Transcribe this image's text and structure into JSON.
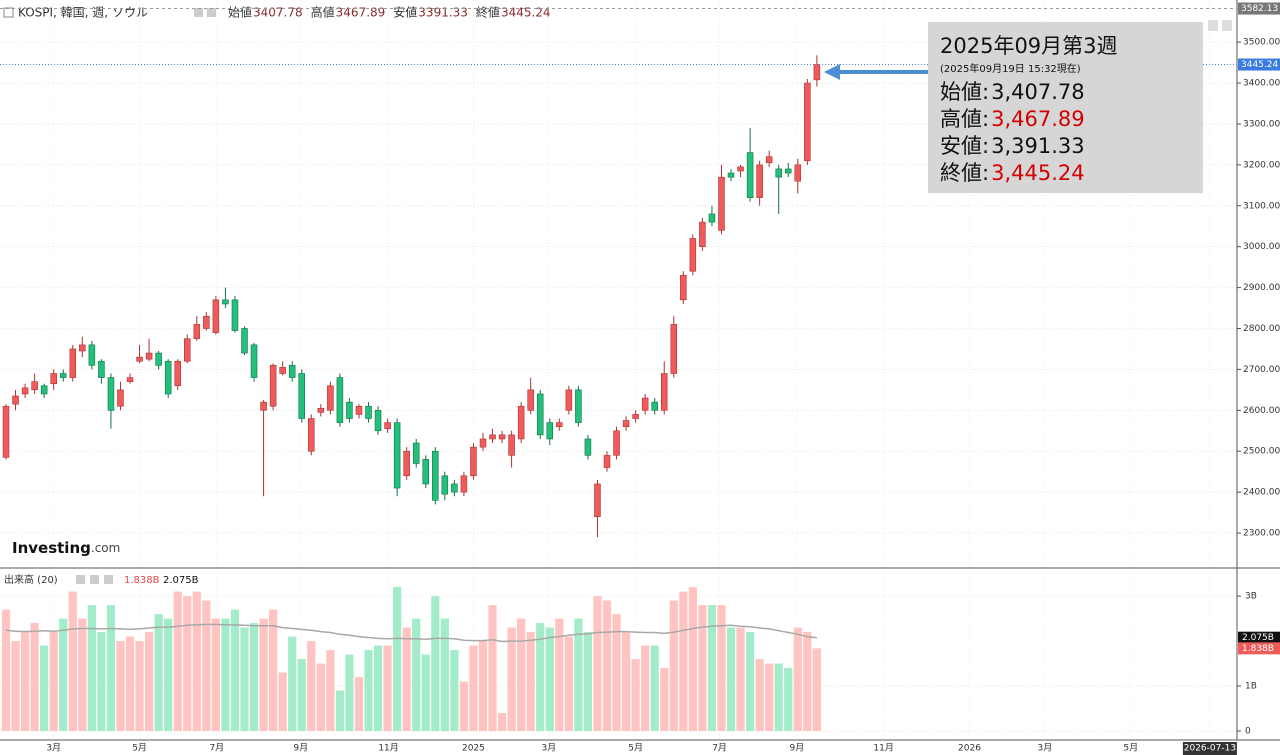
{
  "chart_data": {
    "type": "candlestick",
    "header": {
      "symbol": "KOSPI, 韓国, 週, ソウル",
      "labels": [
        "始値",
        "高値",
        "安値",
        "終値"
      ]
    },
    "info": {
      "title": "2025年09月第3週",
      "subtitle": "(2025年09月19日 15:32現在)",
      "rows": [
        {
          "label": "始値:",
          "value": "3,407.78",
          "color": "#111111"
        },
        {
          "label": "高値:",
          "value": "3,467.89",
          "color": "#d40000"
        },
        {
          "label": "安値:",
          "value": "3,391.33",
          "color": "#111111"
        },
        {
          "label": "終値:",
          "value": "3,445.24",
          "color": "#d40000"
        }
      ]
    },
    "logo": "Investing",
    "logo_suffix": ".com",
    "up_color": "#ef5b5b",
    "down_color": "#22c07a",
    "up_volume_color": "#ffc4c2",
    "down_volume_color": "#a3ecca",
    "ma_color": "#a8a8a8",
    "open": [
      2485,
      2615,
      2640,
      2650,
      2660,
      2665,
      2690,
      2680,
      2745,
      2760,
      2720,
      2680,
      2610,
      2670,
      2720,
      2725,
      2740,
      2720,
      2660,
      2720,
      2775,
      2800,
      2790,
      2870,
      2870,
      2800,
      2760,
      2600,
      2610,
      2690,
      2710,
      2690,
      2500,
      2595,
      2600,
      2680,
      2620,
      2590,
      2610,
      2600,
      2555,
      2570,
      2440,
      2520,
      2480,
      2500,
      2440,
      2420,
      2400,
      2440,
      2510,
      2530,
      2530,
      2490,
      2530,
      2600,
      2640,
      2570,
      2560,
      2600,
      2650,
      2530,
      2340,
      2460,
      2490,
      2560,
      2580,
      2600,
      2620,
      2600,
      2690,
      2870,
      2940,
      3000,
      3080,
      3040,
      3180,
      3185,
      3230,
      3120,
      3205,
      3190,
      3190,
      3160,
      3210,
      3407.78
    ],
    "high": [
      2615,
      2650,
      2665,
      2690,
      2665,
      2700,
      2700,
      2760,
      2780,
      2770,
      2725,
      2690,
      2670,
      2690,
      2760,
      2775,
      2745,
      2725,
      2725,
      2785,
      2830,
      2840,
      2880,
      2900,
      2880,
      2805,
      2765,
      2625,
      2715,
      2720,
      2720,
      2700,
      2590,
      2615,
      2670,
      2690,
      2630,
      2615,
      2620,
      2610,
      2580,
      2580,
      2510,
      2530,
      2490,
      2510,
      2450,
      2430,
      2450,
      2520,
      2545,
      2555,
      2550,
      2550,
      2620,
      2680,
      2650,
      2580,
      2580,
      2660,
      2660,
      2540,
      2430,
      2500,
      2560,
      2585,
      2600,
      2640,
      2630,
      2720,
      2830,
      2940,
      3030,
      3070,
      3100,
      3200,
      3190,
      3200,
      3290,
      3210,
      3235,
      3200,
      3205,
      3215,
      3410,
      3467.89
    ],
    "low": [
      2480,
      2600,
      2630,
      2640,
      2630,
      2650,
      2670,
      2670,
      2730,
      2700,
      2665,
      2555,
      2600,
      2665,
      2715,
      2720,
      2700,
      2630,
      2650,
      2715,
      2770,
      2795,
      2785,
      2850,
      2790,
      2735,
      2670,
      2390,
      2600,
      2685,
      2670,
      2570,
      2490,
      2585,
      2590,
      2560,
      2570,
      2580,
      2570,
      2540,
      2545,
      2390,
      2430,
      2460,
      2410,
      2370,
      2380,
      2390,
      2390,
      2430,
      2500,
      2520,
      2520,
      2460,
      2520,
      2590,
      2530,
      2515,
      2550,
      2590,
      2560,
      2480,
      2290,
      2450,
      2480,
      2550,
      2570,
      2590,
      2590,
      2590,
      2680,
      2860,
      2930,
      2990,
      3050,
      3030,
      3160,
      3170,
      3110,
      3100,
      3195,
      3080,
      3170,
      3130,
      3200,
      3391.33
    ],
    "close": [
      2610,
      2635,
      2655,
      2670,
      2640,
      2690,
      2680,
      2750,
      2760,
      2710,
      2680,
      2600,
      2650,
      2680,
      2730,
      2740,
      2710,
      2640,
      2720,
      2775,
      2810,
      2830,
      2870,
      2860,
      2795,
      2740,
      2680,
      2620,
      2710,
      2705,
      2680,
      2580,
      2580,
      2605,
      2660,
      2570,
      2580,
      2610,
      2580,
      2550,
      2570,
      2410,
      2500,
      2470,
      2420,
      2380,
      2395,
      2400,
      2440,
      2510,
      2530,
      2540,
      2540,
      2540,
      2610,
      2650,
      2540,
      2530,
      2570,
      2650,
      2570,
      2490,
      2420,
      2490,
      2550,
      2575,
      2590,
      2630,
      2600,
      2690,
      2810,
      2930,
      3020,
      3060,
      3060,
      3170,
      3170,
      3195,
      3120,
      3200,
      3220,
      3170,
      3180,
      3200,
      3400,
      3445.24
    ],
    "range_high": 3582.13,
    "xlim": [
      -0.63,
      129.04
    ],
    "xticks": [
      {
        "value": 5,
        "label": "3月"
      },
      {
        "value": 14,
        "label": "5月"
      },
      {
        "value": 22.1,
        "label": "7月"
      },
      {
        "value": 30.9,
        "label": "9月"
      },
      {
        "value": 40.1,
        "label": "11月"
      },
      {
        "value": 49,
        "label": "2025"
      },
      {
        "value": 56.9,
        "label": "3月"
      },
      {
        "value": 66,
        "label": "5月"
      },
      {
        "value": 74.8,
        "label": "7月"
      },
      {
        "value": 82.9,
        "label": "9月"
      },
      {
        "value": 92,
        "label": "11月"
      },
      {
        "value": 101,
        "label": "2026"
      },
      {
        "value": 108.9,
        "label": "3月"
      },
      {
        "value": 117.9,
        "label": "5月"
      },
      {
        "value": 126.2,
        "label": "2026-07-13"
      }
    ],
    "ylim": [
      2217,
      3603
    ],
    "yticks": [
      {
        "value": 2300,
        "label": "2300.00"
      },
      {
        "value": 2400,
        "label": "2400.00"
      },
      {
        "value": 2500,
        "label": "2500.00"
      },
      {
        "value": 2600,
        "label": "2600.00"
      },
      {
        "value": 2700,
        "label": "2700.00"
      },
      {
        "value": 2800,
        "label": "2800.00"
      },
      {
        "value": 2900,
        "label": "2900.00"
      },
      {
        "value": 3000,
        "label": "3000.00"
      },
      {
        "value": 3100,
        "label": "3100.00"
      },
      {
        "value": 3200,
        "label": "3200.00"
      },
      {
        "value": 3300,
        "label": "3300.00"
      },
      {
        "value": 3400,
        "label": "3400.00"
      },
      {
        "value": 3500,
        "label": "3500.00"
      }
    ],
    "grid": true,
    "volume": {
      "name": "出来高 (20)",
      "label": "1.838B",
      "ma_label": "2.075B",
      "values": [
        2.7,
        2.0,
        2.2,
        2.4,
        1.9,
        2.2,
        2.5,
        3.1,
        2.5,
        2.8,
        2.2,
        2.8,
        2.0,
        2.1,
        2.0,
        2.2,
        2.6,
        2.5,
        3.1,
        3.0,
        3.1,
        2.9,
        2.5,
        2.5,
        2.7,
        2.3,
        2.4,
        2.5,
        2.7,
        1.3,
        2.1,
        1.6,
        2.0,
        1.5,
        1.8,
        0.9,
        1.7,
        1.2,
        1.8,
        1.9,
        1.9,
        3.2,
        2.3,
        2.5,
        1.7,
        3.0,
        2.5,
        1.8,
        1.1,
        1.9,
        2.0,
        2.8,
        0.4,
        2.3,
        2.5,
        2.2,
        2.4,
        2.3,
        2.5,
        2.1,
        2.5,
        2.2,
        3.0,
        2.9,
        2.6,
        2.2,
        1.6,
        1.9,
        1.9,
        1.4,
        2.9,
        3.1,
        3.2,
        2.8,
        2.8,
        2.8,
        2.3,
        2.3,
        2.2,
        1.6,
        1.5,
        1.5,
        1.4,
        2.3,
        2.2,
        1.838
      ],
      "ma": [
        2.24,
        2.22,
        2.21,
        2.22,
        2.23,
        2.22,
        2.24,
        2.27,
        2.28,
        2.28,
        2.27,
        2.28,
        2.27,
        2.26,
        2.27,
        2.29,
        2.31,
        2.31,
        2.33,
        2.35,
        2.36,
        2.37,
        2.37,
        2.36,
        2.36,
        2.35,
        2.34,
        2.34,
        2.34,
        2.3,
        2.28,
        2.26,
        2.24,
        2.21,
        2.19,
        2.15,
        2.13,
        2.1,
        2.08,
        2.06,
        2.05,
        2.06,
        2.05,
        2.05,
        2.04,
        2.06,
        2.06,
        2.05,
        2.02,
        2.01,
        2.01,
        2.03,
        1.99,
        2.0,
        2.0,
        2.02,
        2.04,
        2.08,
        2.1,
        2.13,
        2.15,
        2.16,
        2.19,
        2.2,
        2.21,
        2.21,
        2.2,
        2.19,
        2.19,
        2.17,
        2.2,
        2.24,
        2.28,
        2.31,
        2.33,
        2.34,
        2.35,
        2.33,
        2.32,
        2.29,
        2.27,
        2.23,
        2.19,
        2.15,
        2.1,
        2.075
      ],
      "ylim": [
        -0.2,
        3.58
      ],
      "yticks": [
        {
          "value": 0,
          "label": "0"
        },
        {
          "value": 1,
          "label": "1B"
        },
        {
          "value": 3,
          "label": "3B"
        }
      ]
    }
  }
}
